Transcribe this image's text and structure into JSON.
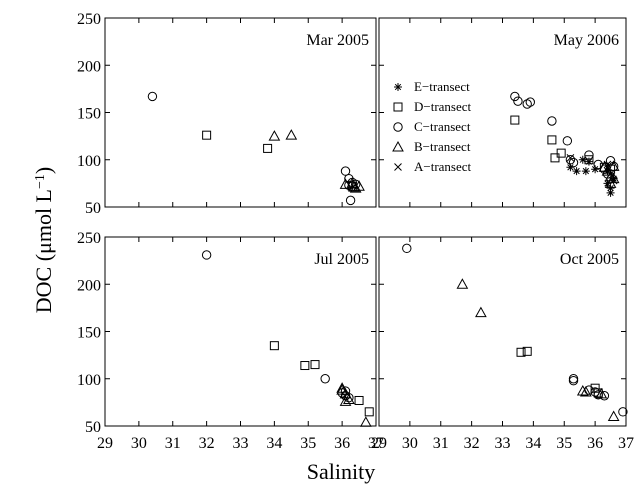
{
  "chart_data": [
    {
      "type": "scatter",
      "title": "Mar 2005",
      "xlim": [
        29,
        37
      ],
      "ylim": [
        50,
        250
      ],
      "series": [
        {
          "symbol": "square",
          "points": [
            [
              32.0,
              126
            ],
            [
              33.8,
              112
            ],
            [
              36.3,
              72
            ]
          ]
        },
        {
          "symbol": "circle",
          "points": [
            [
              30.4,
              167
            ],
            [
              36.1,
              88
            ],
            [
              36.2,
              80
            ],
            [
              36.3,
              76
            ],
            [
              36.25,
              57
            ],
            [
              36.4,
              74
            ],
            [
              36.2,
              73
            ]
          ]
        },
        {
          "symbol": "triangle",
          "points": [
            [
              34.0,
              125
            ],
            [
              34.5,
              126
            ],
            [
              36.1,
              74
            ],
            [
              36.3,
              75
            ],
            [
              36.4,
              70
            ],
            [
              36.5,
              72
            ],
            [
              36.35,
              71
            ]
          ]
        }
      ]
    },
    {
      "type": "scatter",
      "title": "May 2006",
      "xlim": [
        29,
        37
      ],
      "ylim": [
        50,
        250
      ],
      "legend": {
        "position": "left",
        "entries": [
          {
            "symbol": "star",
            "label": "E−transect"
          },
          {
            "symbol": "square",
            "label": "D−transect"
          },
          {
            "symbol": "circle",
            "label": "C−transect"
          },
          {
            "symbol": "triangle",
            "label": "B−transect"
          },
          {
            "symbol": "x",
            "label": "A−transect"
          }
        ]
      },
      "series": [
        {
          "name": "E−transect",
          "symbol": "star",
          "points": [
            [
              35.2,
              92
            ],
            [
              35.4,
              88
            ],
            [
              35.7,
              88
            ],
            [
              35.6,
              100
            ],
            [
              35.8,
              98
            ],
            [
              36.0,
              90
            ],
            [
              36.4,
              75
            ],
            [
              36.5,
              70
            ],
            [
              36.5,
              65
            ],
            [
              36.4,
              88
            ],
            [
              36.6,
              80
            ]
          ]
        },
        {
          "name": "D−transect",
          "symbol": "square",
          "points": [
            [
              33.4,
              142
            ],
            [
              34.6,
              121
            ],
            [
              34.7,
              102
            ],
            [
              34.9,
              107
            ],
            [
              35.8,
              100
            ],
            [
              36.3,
              92
            ],
            [
              36.5,
              90
            ]
          ]
        },
        {
          "name": "C−transect",
          "symbol": "circle",
          "points": [
            [
              33.4,
              167
            ],
            [
              33.5,
              162
            ],
            [
              33.8,
              159
            ],
            [
              33.9,
              161
            ],
            [
              34.6,
              141
            ],
            [
              35.1,
              120
            ],
            [
              35.2,
              100
            ],
            [
              35.3,
              97
            ],
            [
              35.8,
              105
            ],
            [
              36.1,
              95
            ],
            [
              36.3,
              90
            ],
            [
              36.5,
              99
            ],
            [
              36.6,
              93
            ],
            [
              36.4,
              85
            ]
          ]
        },
        {
          "name": "B−transect",
          "symbol": "triangle",
          "points": [
            [
              36.3,
              92
            ],
            [
              36.4,
              88
            ],
            [
              36.5,
              82
            ],
            [
              36.6,
              93
            ],
            [
              36.5,
              75
            ],
            [
              36.6,
              80
            ]
          ]
        },
        {
          "name": "A−transect",
          "symbol": "x",
          "points": [
            [
              35.2,
              102
            ],
            [
              36.4,
              95
            ],
            [
              36.5,
              85
            ],
            [
              36.6,
              78
            ]
          ]
        }
      ]
    },
    {
      "type": "scatter",
      "title": "Jul 2005",
      "xlim": [
        29,
        37
      ],
      "ylim": [
        50,
        250
      ],
      "series": [
        {
          "symbol": "square",
          "points": [
            [
              34.0,
              135
            ],
            [
              34.9,
              114
            ],
            [
              35.2,
              115
            ],
            [
              36.5,
              77
            ],
            [
              36.8,
              65
            ]
          ]
        },
        {
          "symbol": "circle",
          "points": [
            [
              32.0,
              231
            ],
            [
              35.5,
              100
            ],
            [
              36.0,
              85
            ],
            [
              36.1,
              82
            ],
            [
              36.2,
              80
            ],
            [
              36.1,
              87
            ]
          ]
        },
        {
          "symbol": "triangle",
          "points": [
            [
              36.0,
              88
            ],
            [
              36.1,
              84
            ],
            [
              36.2,
              78
            ],
            [
              36.1,
              76
            ],
            [
              36.0,
              90
            ],
            [
              36.7,
              54
            ]
          ]
        }
      ]
    },
    {
      "type": "scatter",
      "title": "Oct 2005",
      "xlim": [
        29,
        37
      ],
      "ylim": [
        50,
        250
      ],
      "series": [
        {
          "symbol": "square",
          "points": [
            [
              33.6,
              128
            ],
            [
              33.8,
              129
            ],
            [
              36.0,
              90
            ],
            [
              36.1,
              85
            ]
          ]
        },
        {
          "symbol": "circle",
          "points": [
            [
              29.9,
              238
            ],
            [
              35.3,
              100
            ],
            [
              35.3,
              98
            ],
            [
              35.8,
              88
            ],
            [
              36.0,
              86
            ],
            [
              36.1,
              83
            ],
            [
              36.3,
              82
            ],
            [
              36.9,
              65
            ]
          ]
        },
        {
          "symbol": "triangle",
          "points": [
            [
              31.7,
              200
            ],
            [
              32.3,
              170
            ],
            [
              35.6,
              87
            ],
            [
              35.7,
              86
            ],
            [
              36.2,
              84
            ],
            [
              36.6,
              60
            ]
          ]
        }
      ]
    }
  ],
  "axes": {
    "ylabel": "DOC (μmol L",
    "ylabel_sup": "−1",
    "ylabel_close": ")",
    "xlabel": "Salinity",
    "x_ticks": [
      "29",
      "30",
      "31",
      "32",
      "33",
      "34",
      "35",
      "36",
      "37"
    ],
    "y_ticks": [
      "50",
      "100",
      "150",
      "200",
      "250"
    ]
  }
}
